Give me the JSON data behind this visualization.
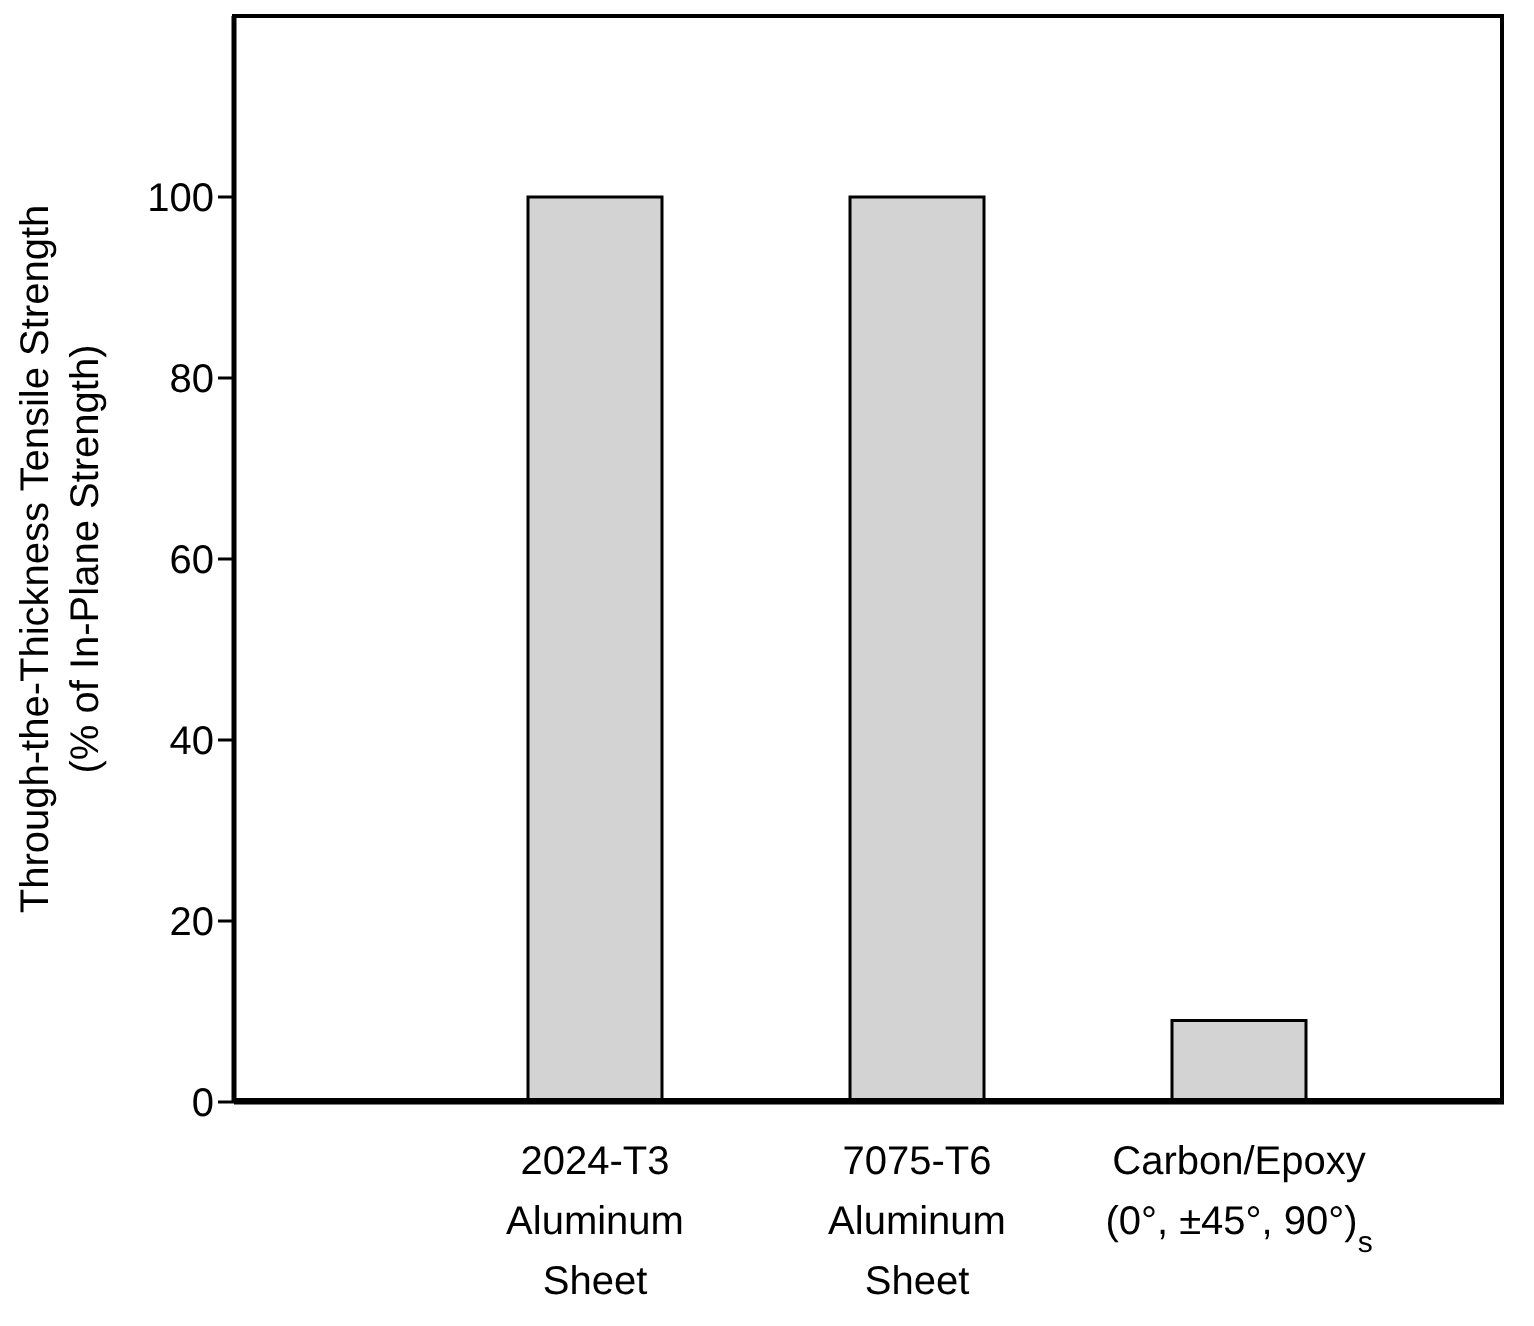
{
  "chart_data": {
    "type": "bar",
    "ylabel": "Through-the-Thickness Tensile Strength\n(% of In-Plane Strength)",
    "categories": [
      "2024-T3\nAluminum\nSheet",
      "7075-T6\nAluminum\nSheet",
      "Carbon/Epoxy\n(0°, ±45°, 90°)$_{s}$"
    ],
    "values": [
      100,
      100,
      9
    ],
    "color": "#d3d3d3",
    "ylim": [
      0,
      120
    ],
    "yticks": [
      0,
      20,
      40,
      60,
      80,
      100
    ]
  }
}
